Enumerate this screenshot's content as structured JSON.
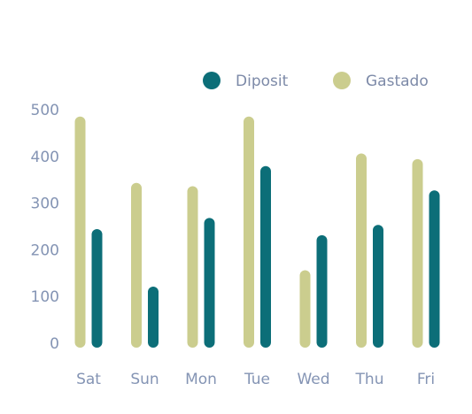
{
  "chart_data": {
    "type": "bar",
    "categories": [
      "Sat",
      "Sun",
      "Mon",
      "Tue",
      "Wed",
      "Thu",
      "Fri"
    ],
    "series": [
      {
        "name": "Gastado",
        "values": [
          472,
          330,
          323,
          472,
          143,
          393,
          381
        ],
        "color": "#cbcd8e"
      },
      {
        "name": "Diposit",
        "values": [
          231,
          108,
          255,
          366,
          218,
          240,
          314
        ],
        "color": "#0c6e78"
      }
    ],
    "legend_order": [
      "Diposit",
      "Gastado"
    ],
    "ylim": [
      0,
      500
    ],
    "yticks": [
      0,
      100,
      200,
      300,
      400,
      500
    ],
    "title": "",
    "xlabel": "",
    "ylabel": "",
    "grid": false,
    "legend_position": "top-right"
  },
  "colors": {
    "tick_text": "#8494b4",
    "legend_text": "#7d8aa8"
  }
}
